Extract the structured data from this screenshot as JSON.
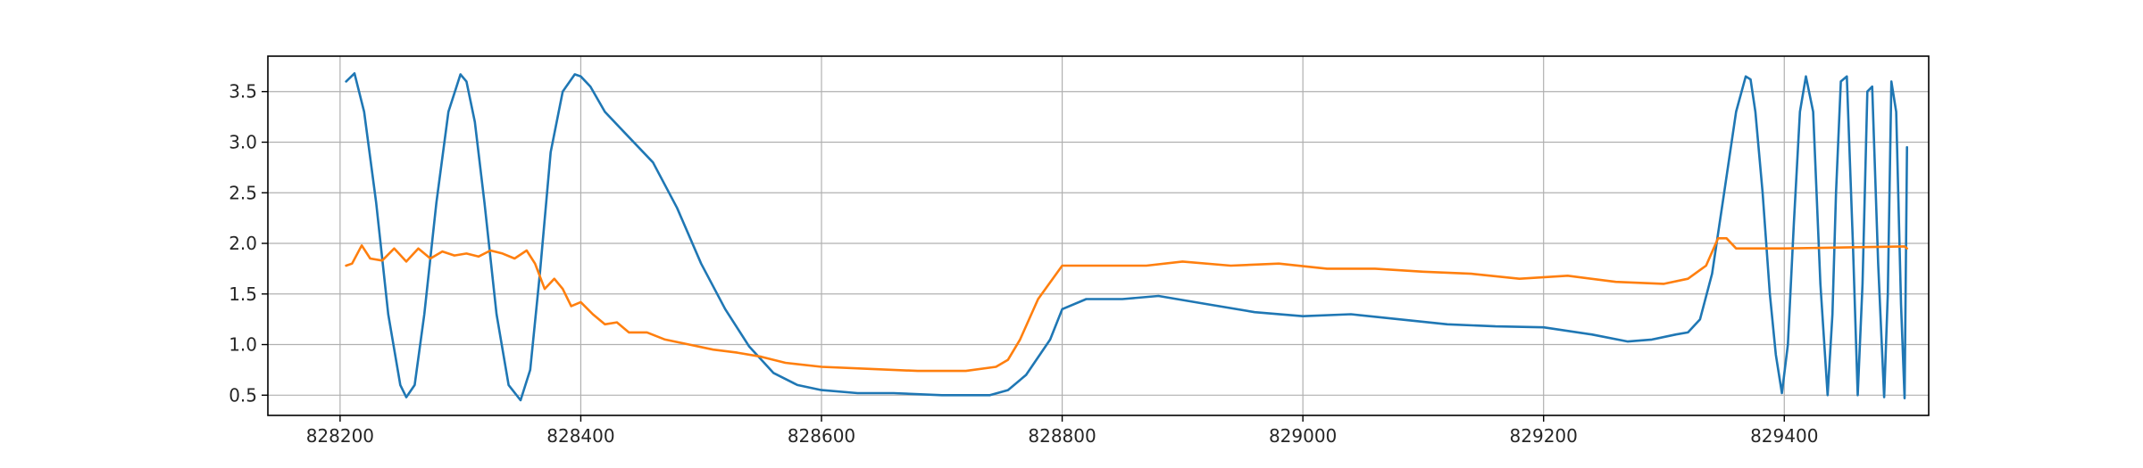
{
  "chart_data": {
    "type": "line",
    "title": "",
    "xlabel": "",
    "ylabel": "",
    "xlim": [
      828140,
      829520
    ],
    "ylim": [
      0.3,
      3.85
    ],
    "grid": true,
    "x_ticks": [
      828200,
      828400,
      828600,
      828800,
      829000,
      829200,
      829400
    ],
    "x_tick_labels": [
      "828200",
      "828400",
      "828600",
      "828800",
      "829000",
      "829200",
      "829400"
    ],
    "y_ticks": [
      0.5,
      1.0,
      1.5,
      2.0,
      2.5,
      3.0,
      3.5
    ],
    "y_tick_labels": [
      "0.5",
      "1.0",
      "1.5",
      "2.0",
      "2.5",
      "3.0",
      "3.5"
    ],
    "colors": {
      "series1": "#1f77b4",
      "series2": "#ff7f0e",
      "grid": "#b0b0b0",
      "axes": "#000000"
    },
    "series": [
      {
        "values_x": [
          828205,
          828212,
          828220,
          828230,
          828240,
          828250,
          828255,
          828262,
          828270,
          828280,
          828290,
          828300,
          828305,
          828312,
          828320,
          828330,
          828340,
          828350,
          828358,
          828366,
          828375,
          828385,
          828395,
          828400,
          828408,
          828420,
          828440,
          828460,
          828480,
          828500,
          828520,
          828540,
          828560,
          828580,
          828600,
          828630,
          828660,
          828700,
          828740,
          828755,
          828770,
          828790,
          828800,
          828820,
          828850,
          828880,
          828920,
          828960,
          829000,
          829040,
          829080,
          829120,
          829160,
          829200,
          829240,
          829270,
          829290,
          829310,
          829320,
          829330,
          829340,
          829350,
          829360,
          829368,
          829372,
          829376,
          829382,
          829388,
          829393,
          829398,
          829403,
          829408,
          829413,
          829418,
          829424,
          829430,
          829436,
          829440,
          829443,
          829447,
          829452,
          829457,
          829461,
          829465,
          829469,
          829473,
          829478,
          829483,
          829486,
          829489,
          829493,
          829497,
          829500,
          829502
        ],
        "values_y": [
          3.6,
          3.68,
          3.3,
          2.4,
          1.3,
          0.6,
          0.48,
          0.6,
          1.3,
          2.4,
          3.3,
          3.67,
          3.6,
          3.2,
          2.4,
          1.3,
          0.6,
          0.45,
          0.75,
          1.7,
          2.9,
          3.5,
          3.67,
          3.65,
          3.55,
          3.3,
          3.05,
          2.8,
          2.35,
          1.8,
          1.35,
          0.98,
          0.72,
          0.6,
          0.55,
          0.52,
          0.52,
          0.5,
          0.5,
          0.55,
          0.7,
          1.05,
          1.35,
          1.45,
          1.45,
          1.48,
          1.4,
          1.32,
          1.28,
          1.3,
          1.25,
          1.2,
          1.18,
          1.17,
          1.1,
          1.03,
          1.05,
          1.1,
          1.12,
          1.25,
          1.7,
          2.5,
          3.3,
          3.65,
          3.62,
          3.3,
          2.5,
          1.5,
          0.9,
          0.52,
          1.0,
          2.2,
          3.3,
          3.65,
          3.3,
          1.6,
          0.5,
          1.3,
          2.5,
          3.6,
          3.65,
          2.0,
          0.5,
          1.6,
          3.5,
          3.55,
          1.8,
          0.48,
          1.5,
          3.6,
          3.3,
          1.4,
          0.47,
          2.95
        ]
      },
      {
        "values_x": [
          828205,
          828210,
          828218,
          828225,
          828235,
          828245,
          828255,
          828265,
          828275,
          828285,
          828295,
          828305,
          828315,
          828325,
          828335,
          828345,
          828355,
          828362,
          828370,
          828378,
          828385,
          828392,
          828400,
          828410,
          828420,
          828430,
          828440,
          828455,
          828470,
          828490,
          828510,
          828530,
          828550,
          828570,
          828600,
          828640,
          828680,
          828720,
          828745,
          828755,
          828765,
          828780,
          828800,
          828830,
          828870,
          828900,
          828940,
          828980,
          829020,
          829060,
          829100,
          829140,
          829180,
          829220,
          829260,
          829300,
          829320,
          829335,
          829345,
          829352,
          829360,
          829400,
          829450,
          829500,
          829502
        ],
        "values_y": [
          1.78,
          1.8,
          1.98,
          1.85,
          1.83,
          1.95,
          1.82,
          1.95,
          1.85,
          1.92,
          1.88,
          1.9,
          1.87,
          1.93,
          1.9,
          1.85,
          1.93,
          1.8,
          1.55,
          1.65,
          1.55,
          1.38,
          1.42,
          1.3,
          1.2,
          1.22,
          1.12,
          1.12,
          1.05,
          1.0,
          0.95,
          0.92,
          0.88,
          0.82,
          0.78,
          0.76,
          0.74,
          0.74,
          0.78,
          0.85,
          1.05,
          1.45,
          1.78,
          1.78,
          1.78,
          1.82,
          1.78,
          1.8,
          1.75,
          1.75,
          1.72,
          1.7,
          1.65,
          1.68,
          1.62,
          1.6,
          1.65,
          1.78,
          2.05,
          2.05,
          1.95,
          1.95,
          1.96,
          1.97,
          1.95
        ]
      }
    ]
  }
}
